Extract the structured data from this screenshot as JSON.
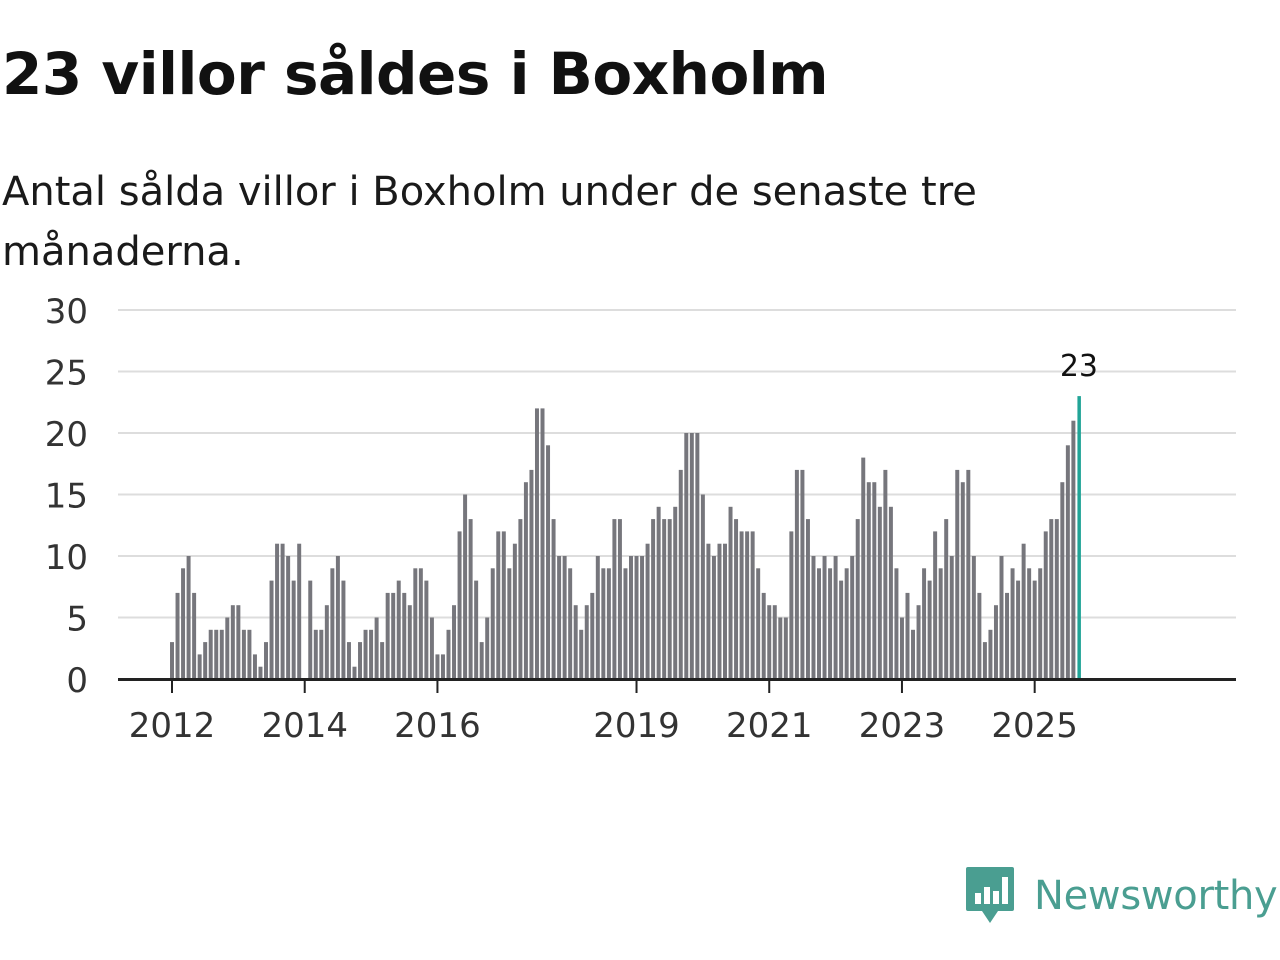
{
  "title": "23 villor såldes i Boxholm",
  "subtitle": "Antal sålda villor i Boxholm under de senaste tre månaderna.",
  "brand": {
    "name": "Newsworthy",
    "icon": "newsworthy-logo-icon",
    "color": "#4a9e91"
  },
  "colors": {
    "bar": "#76767c",
    "highlight": "#21a497",
    "grid": "#dddddd",
    "axis": "#222222",
    "tick_text": "#333333"
  },
  "chart_data": {
    "type": "bar",
    "title": "23 villor såldes i Boxholm",
    "xlabel": "",
    "ylabel": "",
    "ylim": [
      0,
      30
    ],
    "yticks": [
      0,
      5,
      10,
      15,
      20,
      25,
      30
    ],
    "grid": true,
    "x_start_year": 2012,
    "x_start_month": 1,
    "xticks": [
      "2012",
      "2014",
      "2016",
      "2019",
      "2021",
      "2023",
      "2025"
    ],
    "xtick_years": [
      2012,
      2014,
      2016,
      2019,
      2021,
      2023,
      2025
    ],
    "values": [
      3,
      7,
      9,
      10,
      7,
      2,
      3,
      4,
      4,
      4,
      5,
      6,
      6,
      4,
      4,
      2,
      1,
      3,
      8,
      11,
      11,
      10,
      8,
      11,
      0,
      8,
      4,
      4,
      6,
      9,
      10,
      8,
      3,
      1,
      3,
      4,
      4,
      5,
      3,
      7,
      7,
      8,
      7,
      6,
      9,
      9,
      8,
      5,
      2,
      2,
      4,
      6,
      12,
      15,
      13,
      8,
      3,
      5,
      9,
      12,
      12,
      9,
      11,
      13,
      16,
      17,
      22,
      22,
      19,
      13,
      10,
      10,
      9,
      6,
      4,
      6,
      7,
      10,
      9,
      9,
      13,
      13,
      9,
      10,
      10,
      10,
      11,
      13,
      14,
      13,
      13,
      14,
      17,
      20,
      20,
      20,
      15,
      11,
      10,
      11,
      11,
      14,
      13,
      12,
      12,
      12,
      9,
      7,
      6,
      6,
      5,
      5,
      12,
      17,
      17,
      13,
      10,
      9,
      10,
      9,
      10,
      8,
      9,
      10,
      13,
      18,
      16,
      16,
      14,
      17,
      14,
      9,
      5,
      7,
      4,
      6,
      9,
      8,
      12,
      9,
      13,
      10,
      17,
      16,
      17,
      10,
      7,
      3,
      4,
      6,
      10,
      7,
      9,
      8,
      11,
      9,
      8,
      9,
      12,
      13,
      13,
      16,
      19,
      21,
      23
    ],
    "highlight_label": "23"
  }
}
